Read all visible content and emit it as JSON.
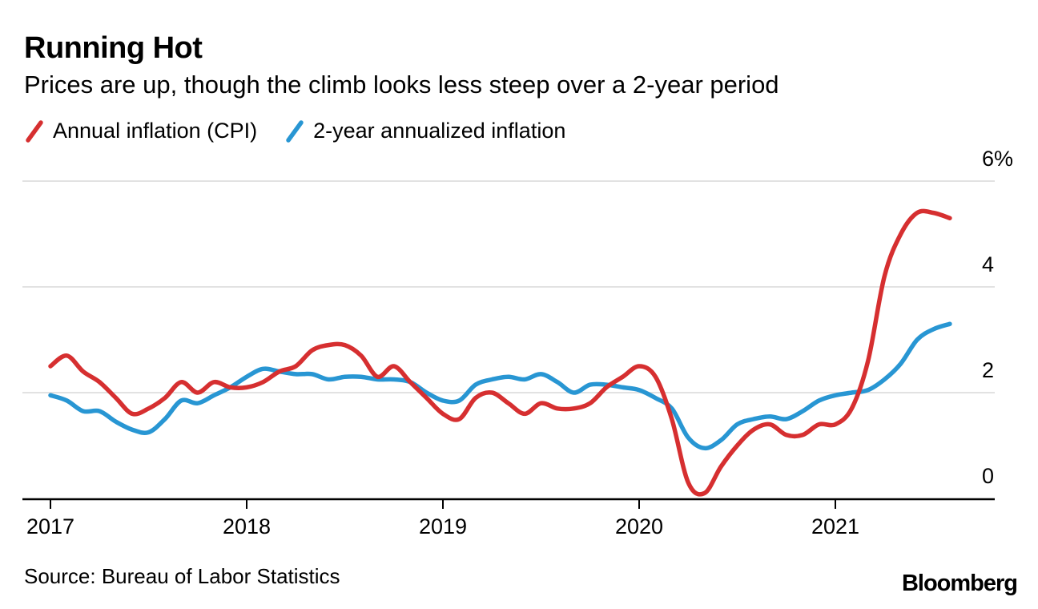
{
  "header": {
    "title": "Running Hot",
    "subtitle": "Prices are up, though the climb looks less steep over a 2-year period"
  },
  "legend": [
    {
      "label": "Annual inflation (CPI)",
      "color": "#d62f30"
    },
    {
      "label": "2-year annualized inflation",
      "color": "#2896d3"
    }
  ],
  "footer": {
    "source": "Source: Bureau of Labor Statistics",
    "brand": "Bloomberg"
  },
  "chart_data": {
    "type": "line",
    "title": "Running Hot",
    "subtitle": "Prices are up, though the climb looks less steep over a 2-year period",
    "unit": "%",
    "x_range": {
      "start": "2017-01",
      "end": "2021-08",
      "frequency": "monthly"
    },
    "ylim": [
      0,
      6
    ],
    "grid": "horizontal",
    "legend_position": "top-left",
    "y_axis_side": "right",
    "yticks": [
      {
        "label": "6%",
        "value": 6
      },
      {
        "label": "4",
        "value": 4
      },
      {
        "label": "2",
        "value": 2
      },
      {
        "label": "0",
        "value": 0
      }
    ],
    "xticks": [
      {
        "label": "2017",
        "month_index": 0
      },
      {
        "label": "2018",
        "month_index": 12
      },
      {
        "label": "2019",
        "month_index": 24
      },
      {
        "label": "2020",
        "month_index": 36
      },
      {
        "label": "2021",
        "month_index": 48
      }
    ],
    "series": [
      {
        "name": "Annual inflation (CPI)",
        "color": "#d62f30",
        "values": [
          2.5,
          2.7,
          2.4,
          2.2,
          1.9,
          1.6,
          1.7,
          1.9,
          2.2,
          2.0,
          2.2,
          2.1,
          2.1,
          2.2,
          2.4,
          2.5,
          2.8,
          2.9,
          2.9,
          2.7,
          2.3,
          2.5,
          2.2,
          1.9,
          1.6,
          1.5,
          1.9,
          2.0,
          1.8,
          1.6,
          1.8,
          1.7,
          1.7,
          1.8,
          2.1,
          2.3,
          2.5,
          2.3,
          1.5,
          0.3,
          0.1,
          0.6,
          1.0,
          1.3,
          1.4,
          1.2,
          1.2,
          1.4,
          1.4,
          1.7,
          2.6,
          4.2,
          5.0,
          5.4,
          5.4,
          5.3
        ]
      },
      {
        "name": "2-year annualized inflation",
        "color": "#2896d3",
        "values": [
          1.95,
          1.85,
          1.65,
          1.65,
          1.45,
          1.3,
          1.25,
          1.5,
          1.85,
          1.8,
          1.95,
          2.1,
          2.3,
          2.45,
          2.4,
          2.35,
          2.35,
          2.25,
          2.3,
          2.3,
          2.25,
          2.25,
          2.2,
          2.0,
          1.85,
          1.85,
          2.15,
          2.25,
          2.3,
          2.25,
          2.35,
          2.2,
          2.0,
          2.15,
          2.15,
          2.1,
          2.05,
          1.9,
          1.7,
          1.15,
          0.95,
          1.1,
          1.4,
          1.5,
          1.55,
          1.5,
          1.65,
          1.85,
          1.95,
          2.0,
          2.05,
          2.25,
          2.55,
          3.0,
          3.2,
          3.3
        ]
      }
    ]
  }
}
